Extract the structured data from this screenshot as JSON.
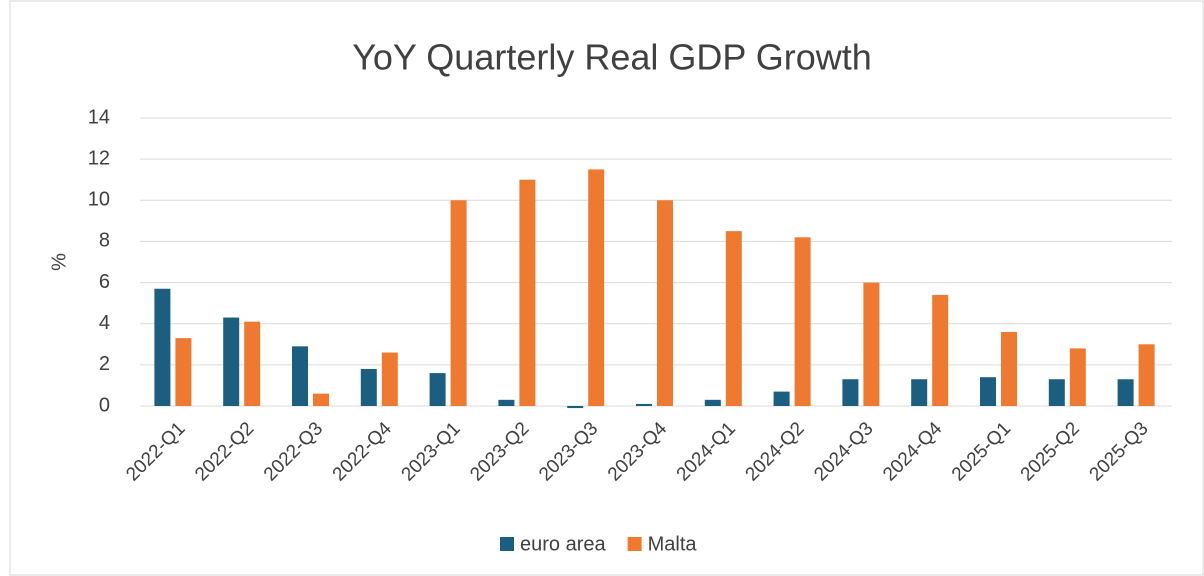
{
  "chart_data": {
    "type": "bar",
    "title": "YoY Quarterly Real GDP Growth",
    "y_label": "%",
    "categories": [
      "2022-Q1",
      "2022-Q2",
      "2022-Q3",
      "2022-Q4",
      "2023-Q1",
      "2023-Q2",
      "2023-Q3",
      "2023-Q4",
      "2024-Q1",
      "2024-Q2",
      "2024-Q3",
      "2024-Q4",
      "2025-Q1",
      "2025-Q2",
      "2025-Q3"
    ],
    "series": [
      {
        "name": "euro area",
        "color": "#1b5e7f",
        "values": [
          5.7,
          4.3,
          2.9,
          1.8,
          1.6,
          0.3,
          -0.1,
          0.1,
          0.3,
          0.7,
          1.3,
          1.3,
          1.4,
          1.3,
          1.3
        ]
      },
      {
        "name": "Malta",
        "color": "#ee7a32",
        "values": [
          3.3,
          4.1,
          0.6,
          2.6,
          10.0,
          11.0,
          11.5,
          10.0,
          8.5,
          8.2,
          6.0,
          5.4,
          3.6,
          2.8,
          3.0
        ]
      }
    ],
    "ylim": [
      0,
      14
    ],
    "yticks": [
      0,
      2,
      4,
      6,
      8,
      10,
      12,
      14
    ],
    "grid": true,
    "legend": "bottom"
  }
}
